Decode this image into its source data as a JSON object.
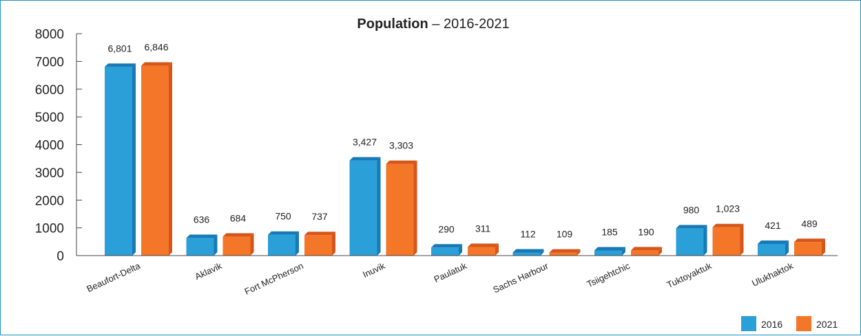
{
  "chart_data": {
    "type": "bar",
    "title_bold": "Population",
    "title_rest": " – 2016-2021",
    "categories": [
      "Beaufort-Delta",
      "Aklavik",
      "Fort McPherson",
      "Inuvik",
      "Paulatuk",
      "Sachs Harbour",
      "Tsiigehtchic",
      "Tuktoyaktuk",
      "Ulukhaktok"
    ],
    "series": [
      {
        "name": "2016",
        "color": "#2a9fd8",
        "side_color": "#1779b6",
        "values": [
          6801,
          636,
          750,
          3427,
          290,
          112,
          185,
          980,
          421
        ],
        "labels": [
          "6,801",
          "636",
          "750",
          "3,427",
          "290",
          "112",
          "185",
          "980",
          "421"
        ]
      },
      {
        "name": "2021",
        "color": "#f47629",
        "side_color": "#d6561a",
        "values": [
          6846,
          684,
          737,
          3303,
          311,
          109,
          190,
          1023,
          489
        ],
        "labels": [
          "6,846",
          "684",
          "737",
          "3,303",
          "311",
          "109",
          "190",
          "1,023",
          "489"
        ]
      }
    ],
    "yticks": [
      "0",
      "1000",
      "2000",
      "3000",
      "4000",
      "5000",
      "6000",
      "7000",
      "8000"
    ],
    "ylim": [
      0,
      8000
    ],
    "legend_position": "bottom-right",
    "grid": false
  }
}
